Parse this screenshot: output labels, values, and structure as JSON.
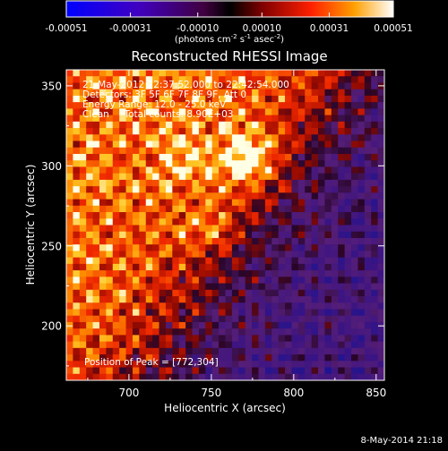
{
  "colorbar": {
    "tick_labels": [
      "-0.00051",
      "-0.00031",
      "-0.00010",
      "0.00010",
      "0.00031",
      "0.00051"
    ],
    "tick_values": [
      -0.00051,
      -0.00031,
      -0.0001,
      0.0001,
      0.00031,
      0.00051
    ],
    "range": [
      -0.00051,
      0.00051
    ],
    "unit_main": "(photons cm",
    "unit_sup1": "-2",
    "unit_mid": " s",
    "unit_sup2": "-1",
    "unit_end": " asec",
    "unit_sup3": "-2",
    "unit_close": ")"
  },
  "chart_data": {
    "type": "heatmap",
    "title": "Reconstructed RHESSI Image",
    "xlabel": "Heliocentric X (arcsec)",
    "ylabel": "Heliocentric Y (arcsec)",
    "xlim": [
      662,
      855
    ],
    "ylim": [
      166,
      360
    ],
    "xticks": [
      700,
      750,
      800,
      850
    ],
    "yticks": [
      200,
      250,
      300,
      350
    ],
    "peak": [
      772,
      304
    ],
    "annotations": [
      "21-May-2012 22:37:52.000 to 22:42:54.000",
      "Detectors: 3F 5F 6F 7F 8F 9F, Att 0",
      "Energy Range: 12.0 - 25.0 keV",
      "Clean     Total counts: 8.90E+03"
    ],
    "peak_label": "Position of Peak = [772,304]",
    "colors": {
      "negative": "#1010e0",
      "zero": "#000000",
      "low": "#800000",
      "mid": "#ff2000",
      "high": "#ffa000",
      "max": "#ffffff",
      "violet": "#5a2080"
    }
  },
  "footer": {
    "timestamp": "8-May-2014 21:18"
  }
}
